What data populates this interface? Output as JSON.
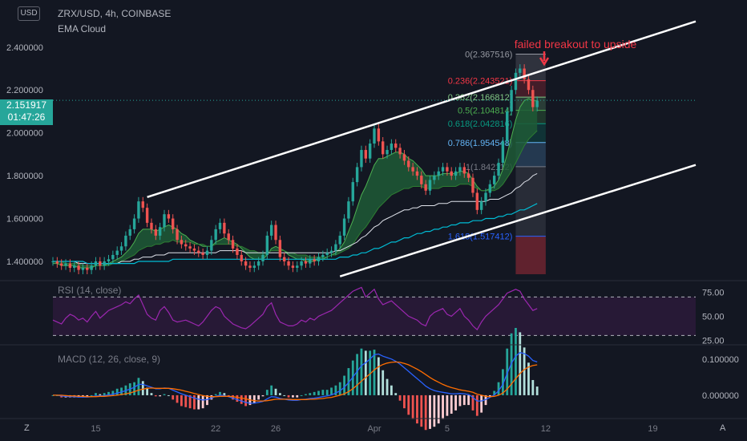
{
  "header": {
    "symbol": "ZRX/USD, 4h, COINBASE",
    "indicator": "EMA Cloud",
    "currency": "USD"
  },
  "last_price": {
    "value": "2.151917",
    "countdown": "01:47:26"
  },
  "annotation": {
    "text": "failed breakout to upside",
    "color": "#f23645"
  },
  "colors": {
    "background": "#131722",
    "channel": "#ffffff",
    "cloud": "#1e5a36",
    "up": "#26a69a",
    "down": "#ef5350",
    "rsi": "#9c27b0",
    "macd": "#2962ff",
    "signal": "#ff6d00"
  },
  "corners": {
    "left": "Z",
    "right": "A"
  },
  "chart_data": [
    {
      "type": "line",
      "title": "ZRX/USD, 4h, COINBASE",
      "y_ticks": [
        "2.400000",
        "2.200000",
        "2.000000",
        "1.800000",
        "1.600000",
        "1.400000"
      ],
      "y_tick_values": [
        2.4,
        2.2,
        2.0,
        1.8,
        1.6,
        1.4
      ],
      "ylim": [
        1.34,
        2.62
      ],
      "x_ticks": [
        "15",
        "22",
        "26",
        "Apr",
        "5",
        "12",
        "19"
      ],
      "x_tick_index": [
        10,
        38,
        52,
        75,
        92,
        115,
        140
      ],
      "xlim": [
        0,
        150
      ],
      "price": [
        1.4,
        1.39,
        1.38,
        1.39,
        1.37,
        1.38,
        1.36,
        1.37,
        1.36,
        1.38,
        1.4,
        1.38,
        1.4,
        1.41,
        1.43,
        1.45,
        1.47,
        1.52,
        1.55,
        1.6,
        1.68,
        1.65,
        1.58,
        1.55,
        1.52,
        1.56,
        1.62,
        1.6,
        1.55,
        1.5,
        1.48,
        1.47,
        1.46,
        1.45,
        1.44,
        1.43,
        1.45,
        1.5,
        1.55,
        1.58,
        1.53,
        1.5,
        1.46,
        1.43,
        1.4,
        1.38,
        1.37,
        1.38,
        1.4,
        1.43,
        1.52,
        1.57,
        1.5,
        1.42,
        1.4,
        1.38,
        1.37,
        1.38,
        1.4,
        1.39,
        1.41,
        1.4,
        1.42,
        1.43,
        1.44,
        1.45,
        1.48,
        1.52,
        1.6,
        1.68,
        1.77,
        1.84,
        1.92,
        1.88,
        1.95,
        2.02,
        1.96,
        1.9,
        1.92,
        1.95,
        1.93,
        1.9,
        1.87,
        1.84,
        1.82,
        1.8,
        1.76,
        1.73,
        1.78,
        1.8,
        1.82,
        1.84,
        1.82,
        1.8,
        1.82,
        1.84,
        1.81,
        1.79,
        1.72,
        1.64,
        1.68,
        1.72,
        1.76,
        1.8,
        1.86,
        1.96,
        2.1,
        2.2,
        2.28,
        2.3,
        2.25,
        2.2,
        2.12,
        2.15
      ],
      "ema_fast": [
        1.39,
        1.39,
        1.38,
        1.38,
        1.38,
        1.38,
        1.37,
        1.37,
        1.37,
        1.37,
        1.38,
        1.38,
        1.38,
        1.39,
        1.4,
        1.41,
        1.42,
        1.44,
        1.46,
        1.49,
        1.53,
        1.55,
        1.55,
        1.55,
        1.54,
        1.55,
        1.56,
        1.57,
        1.56,
        1.55,
        1.53,
        1.52,
        1.5,
        1.49,
        1.48,
        1.47,
        1.47,
        1.47,
        1.49,
        1.5,
        1.51,
        1.5,
        1.49,
        1.48,
        1.46,
        1.44,
        1.42,
        1.41,
        1.41,
        1.41,
        1.43,
        1.46,
        1.47,
        1.46,
        1.45,
        1.43,
        1.42,
        1.41,
        1.41,
        1.4,
        1.4,
        1.4,
        1.41,
        1.41,
        1.42,
        1.43,
        1.44,
        1.46,
        1.49,
        1.54,
        1.59,
        1.65,
        1.71,
        1.75,
        1.8,
        1.85,
        1.88,
        1.88,
        1.89,
        1.9,
        1.91,
        1.91,
        1.9,
        1.88,
        1.87,
        1.85,
        1.83,
        1.8,
        1.8,
        1.8,
        1.8,
        1.81,
        1.81,
        1.81,
        1.81,
        1.82,
        1.82,
        1.81,
        1.78,
        1.75,
        1.73,
        1.73,
        1.74,
        1.75,
        1.78,
        1.83,
        1.9,
        1.98,
        2.06,
        2.12,
        2.15,
        2.16,
        2.15,
        2.15
      ],
      "ema_slow": [
        1.4,
        1.4,
        1.4,
        1.39,
        1.39,
        1.39,
        1.39,
        1.38,
        1.38,
        1.38,
        1.38,
        1.38,
        1.38,
        1.38,
        1.39,
        1.39,
        1.4,
        1.41,
        1.42,
        1.43,
        1.45,
        1.46,
        1.47,
        1.47,
        1.48,
        1.48,
        1.49,
        1.49,
        1.5,
        1.49,
        1.49,
        1.49,
        1.49,
        1.48,
        1.48,
        1.48,
        1.47,
        1.47,
        1.48,
        1.48,
        1.48,
        1.48,
        1.48,
        1.47,
        1.47,
        1.46,
        1.45,
        1.45,
        1.44,
        1.44,
        1.44,
        1.45,
        1.45,
        1.45,
        1.45,
        1.44,
        1.44,
        1.43,
        1.43,
        1.43,
        1.42,
        1.42,
        1.42,
        1.42,
        1.42,
        1.43,
        1.43,
        1.44,
        1.45,
        1.46,
        1.48,
        1.51,
        1.54,
        1.56,
        1.59,
        1.62,
        1.65,
        1.67,
        1.69,
        1.71,
        1.72,
        1.73,
        1.74,
        1.74,
        1.75,
        1.75,
        1.75,
        1.74,
        1.74,
        1.74,
        1.74,
        1.75,
        1.75,
        1.75,
        1.75,
        1.76,
        1.76,
        1.76,
        1.75,
        1.74,
        1.73,
        1.73,
        1.73,
        1.73,
        1.74,
        1.76,
        1.79,
        1.82,
        1.86,
        1.9,
        1.94,
        1.97,
        1.99,
        2.01
      ],
      "ma_white": [
        1.4,
        1.4,
        1.4,
        1.4,
        1.4,
        1.4,
        1.39,
        1.39,
        1.39,
        1.39,
        1.39,
        1.39,
        1.39,
        1.39,
        1.39,
        1.39,
        1.4,
        1.4,
        1.4,
        1.41,
        1.41,
        1.42,
        1.42,
        1.42,
        1.43,
        1.43,
        1.43,
        1.44,
        1.44,
        1.44,
        1.44,
        1.44,
        1.44,
        1.44,
        1.44,
        1.44,
        1.44,
        1.44,
        1.44,
        1.45,
        1.45,
        1.45,
        1.45,
        1.45,
        1.45,
        1.44,
        1.44,
        1.44,
        1.44,
        1.44,
        1.44,
        1.44,
        1.44,
        1.44,
        1.44,
        1.44,
        1.44,
        1.44,
        1.44,
        1.44,
        1.44,
        1.44,
        1.44,
        1.44,
        1.44,
        1.44,
        1.45,
        1.45,
        1.46,
        1.47,
        1.48,
        1.49,
        1.51,
        1.52,
        1.54,
        1.56,
        1.57,
        1.59,
        1.6,
        1.61,
        1.62,
        1.63,
        1.64,
        1.64,
        1.65,
        1.65,
        1.66,
        1.66,
        1.66,
        1.66,
        1.67,
        1.67,
        1.67,
        1.68,
        1.68,
        1.68,
        1.68,
        1.68,
        1.68,
        1.68,
        1.68,
        1.68,
        1.69,
        1.69,
        1.69,
        1.7,
        1.71,
        1.72,
        1.74,
        1.75,
        1.77,
        1.78,
        1.8,
        1.81
      ],
      "ma_teal": [
        1.4,
        1.4,
        1.4,
        1.4,
        1.4,
        1.4,
        1.4,
        1.4,
        1.39,
        1.39,
        1.39,
        1.39,
        1.39,
        1.39,
        1.39,
        1.39,
        1.39,
        1.39,
        1.39,
        1.39,
        1.4,
        1.4,
        1.4,
        1.4,
        1.4,
        1.4,
        1.4,
        1.4,
        1.41,
        1.41,
        1.41,
        1.41,
        1.41,
        1.41,
        1.41,
        1.41,
        1.41,
        1.41,
        1.41,
        1.41,
        1.41,
        1.41,
        1.41,
        1.41,
        1.41,
        1.41,
        1.41,
        1.41,
        1.41,
        1.41,
        1.41,
        1.41,
        1.41,
        1.41,
        1.41,
        1.41,
        1.41,
        1.41,
        1.41,
        1.41,
        1.41,
        1.41,
        1.41,
        1.41,
        1.41,
        1.41,
        1.41,
        1.42,
        1.42,
        1.42,
        1.43,
        1.43,
        1.44,
        1.44,
        1.45,
        1.46,
        1.46,
        1.47,
        1.48,
        1.49,
        1.49,
        1.5,
        1.51,
        1.51,
        1.52,
        1.53,
        1.53,
        1.54,
        1.54,
        1.55,
        1.55,
        1.56,
        1.56,
        1.57,
        1.57,
        1.58,
        1.58,
        1.58,
        1.59,
        1.59,
        1.59,
        1.6,
        1.6,
        1.6,
        1.61,
        1.61,
        1.62,
        1.62,
        1.63,
        1.64,
        1.64,
        1.65,
        1.66,
        1.67
      ],
      "channel_upper": {
        "x": [
          22,
          150
        ],
        "y": [
          1.7,
          2.52
        ]
      },
      "channel_lower": {
        "x": [
          67,
          150
        ],
        "y": [
          1.33,
          1.85
        ]
      },
      "fib_levels": [
        {
          "label": "0(2.367516)",
          "value": 2.367516,
          "color": "#9598a1"
        },
        {
          "label": "0.236(2.243521)",
          "value": 2.243521,
          "color": "#f23645"
        },
        {
          "label": "0.382(2.166812)",
          "value": 2.166812,
          "color": "#81c784"
        },
        {
          "label": "0.5(2.104814)",
          "value": 2.104814,
          "color": "#4caf50"
        },
        {
          "label": "0.618(2.042816)",
          "value": 2.042816,
          "color": "#089981"
        },
        {
          "label": "0.786(1.954548)",
          "value": 1.954548,
          "color": "#64b5f6"
        },
        {
          "label": "1(1.842112)",
          "value": 1.842112,
          "color": "#787b86"
        },
        {
          "label": "1.618(1.517412)",
          "value": 1.517412,
          "color": "#2962ff"
        }
      ],
      "fib_x": [
        108,
        115
      ]
    },
    {
      "type": "line",
      "title": "RSI (14, close)",
      "y_ticks": [
        "75.00",
        "50.00",
        "25.00"
      ],
      "y_tick_values": [
        75,
        50,
        25
      ],
      "band": [
        30,
        70
      ],
      "ylim": [
        22,
        82
      ],
      "values": [
        46,
        44,
        42,
        48,
        52,
        50,
        46,
        48,
        44,
        50,
        55,
        48,
        52,
        56,
        58,
        60,
        62,
        65,
        63,
        68,
        72,
        62,
        52,
        48,
        46,
        56,
        60,
        54,
        46,
        44,
        45,
        46,
        44,
        42,
        40,
        44,
        50,
        56,
        60,
        58,
        50,
        46,
        42,
        40,
        38,
        37,
        40,
        44,
        48,
        52,
        60,
        64,
        52,
        44,
        42,
        40,
        40,
        42,
        46,
        44,
        48,
        46,
        50,
        52,
        54,
        56,
        60,
        64,
        68,
        72,
        76,
        78,
        80,
        70,
        74,
        78,
        68,
        62,
        64,
        66,
        62,
        58,
        54,
        50,
        48,
        46,
        42,
        40,
        50,
        54,
        56,
        58,
        52,
        50,
        54,
        58,
        50,
        46,
        40,
        36,
        44,
        50,
        54,
        58,
        62,
        68,
        74,
        76,
        78,
        76,
        68,
        62,
        56,
        58
      ]
    },
    {
      "type": "line",
      "title": "MACD (12, 26, close, 9)",
      "y_ticks": [
        "0.100000",
        "0.000000"
      ],
      "y_tick_values": [
        0.1,
        0.0
      ],
      "ylim": [
        -0.06,
        0.135
      ],
      "macd": [
        0.0,
        0.0,
        -0.002,
        -0.003,
        -0.004,
        -0.004,
        -0.005,
        -0.005,
        -0.005,
        -0.004,
        -0.002,
        -0.002,
        -0.001,
        0.001,
        0.003,
        0.006,
        0.009,
        0.013,
        0.017,
        0.022,
        0.03,
        0.03,
        0.026,
        0.022,
        0.018,
        0.018,
        0.02,
        0.019,
        0.014,
        0.009,
        0.004,
        0.0,
        -0.004,
        -0.008,
        -0.011,
        -0.013,
        -0.012,
        -0.008,
        -0.003,
        0.0,
        -0.001,
        -0.004,
        -0.008,
        -0.012,
        -0.016,
        -0.02,
        -0.022,
        -0.022,
        -0.02,
        -0.017,
        -0.01,
        -0.004,
        -0.005,
        -0.009,
        -0.011,
        -0.013,
        -0.014,
        -0.014,
        -0.012,
        -0.011,
        -0.009,
        -0.008,
        -0.006,
        -0.004,
        -0.002,
        0.001,
        0.006,
        0.012,
        0.022,
        0.035,
        0.05,
        0.066,
        0.082,
        0.09,
        0.1,
        0.112,
        0.114,
        0.108,
        0.104,
        0.1,
        0.094,
        0.086,
        0.076,
        0.066,
        0.056,
        0.046,
        0.036,
        0.025,
        0.018,
        0.013,
        0.01,
        0.008,
        0.006,
        0.004,
        0.004,
        0.005,
        0.004,
        0.002,
        -0.006,
        -0.016,
        -0.016,
        -0.012,
        -0.006,
        0.001,
        0.012,
        0.03,
        0.06,
        0.088,
        0.108,
        0.118,
        0.115,
        0.108,
        0.096,
        0.092
      ],
      "signal": [
        0.0,
        0.0,
        0.0,
        -0.001,
        -0.002,
        -0.002,
        -0.003,
        -0.003,
        -0.004,
        -0.004,
        -0.004,
        -0.003,
        -0.003,
        -0.002,
        -0.001,
        0.0,
        0.002,
        0.004,
        0.006,
        0.01,
        0.014,
        0.017,
        0.019,
        0.02,
        0.019,
        0.019,
        0.019,
        0.019,
        0.018,
        0.016,
        0.014,
        0.011,
        0.008,
        0.005,
        0.002,
        -0.001,
        -0.003,
        -0.004,
        -0.004,
        -0.003,
        -0.003,
        -0.003,
        -0.004,
        -0.006,
        -0.008,
        -0.01,
        -0.013,
        -0.015,
        -0.016,
        -0.016,
        -0.015,
        -0.013,
        -0.011,
        -0.011,
        -0.011,
        -0.011,
        -0.012,
        -0.012,
        -0.012,
        -0.012,
        -0.011,
        -0.011,
        -0.01,
        -0.009,
        -0.007,
        -0.006,
        -0.003,
        0.0,
        0.004,
        0.01,
        0.018,
        0.028,
        0.039,
        0.049,
        0.059,
        0.07,
        0.079,
        0.085,
        0.089,
        0.091,
        0.092,
        0.091,
        0.088,
        0.084,
        0.078,
        0.072,
        0.065,
        0.057,
        0.049,
        0.042,
        0.036,
        0.03,
        0.025,
        0.021,
        0.018,
        0.015,
        0.013,
        0.011,
        0.008,
        0.003,
        0.0,
        -0.003,
        -0.004,
        -0.003,
        0.0,
        0.006,
        0.017,
        0.031,
        0.046,
        0.06,
        0.071,
        0.078,
        0.082,
        0.084
      ]
    }
  ]
}
